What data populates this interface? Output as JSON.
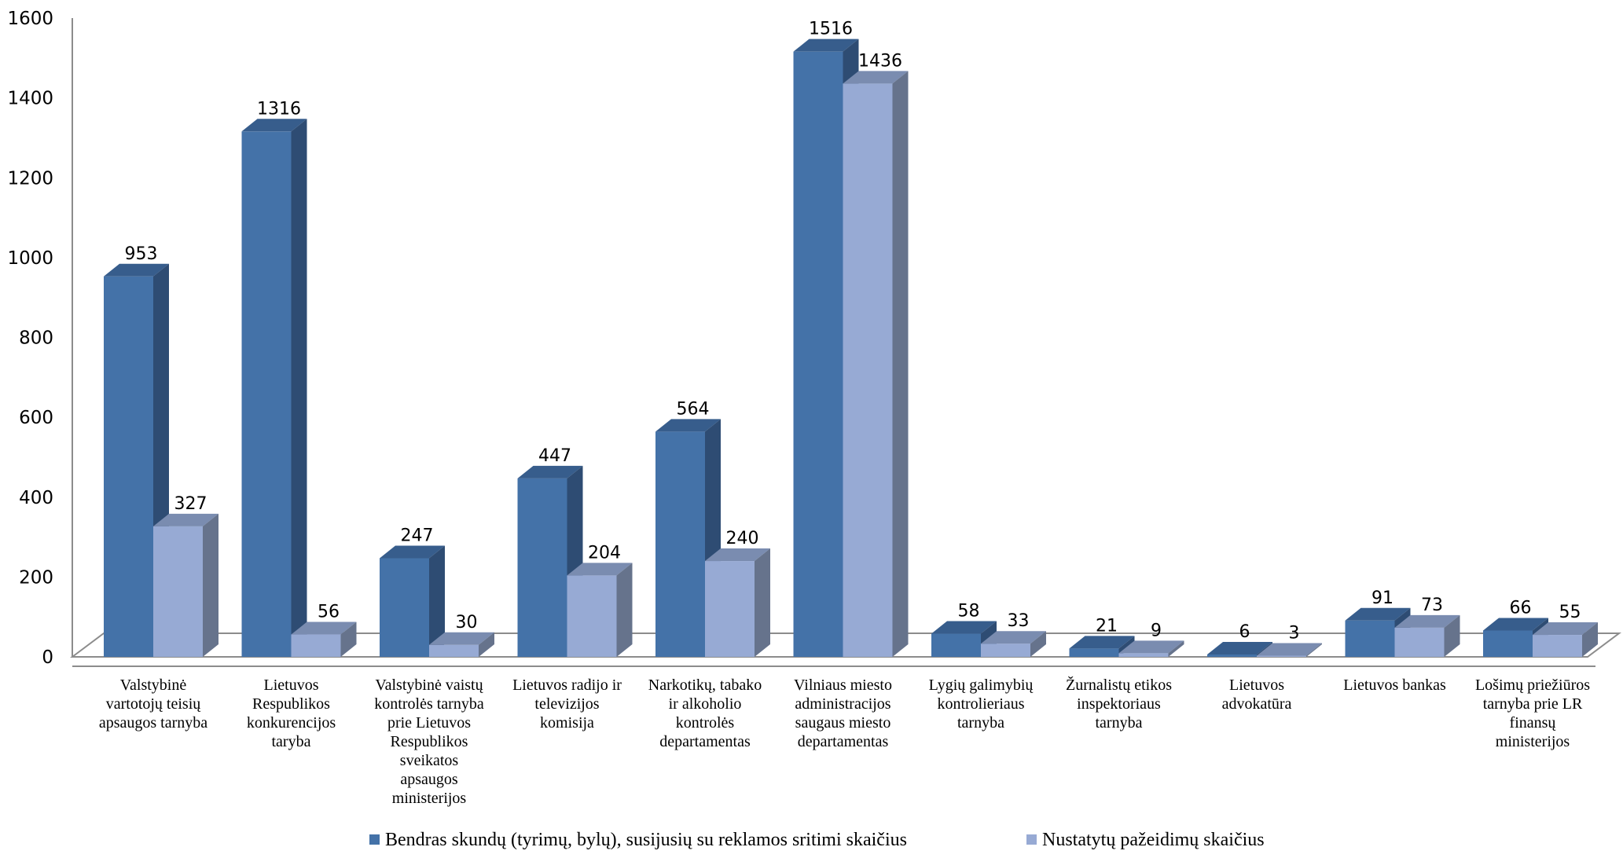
{
  "chart_data": {
    "type": "bar",
    "style": "3d-clustered-column",
    "ylim": [
      0,
      1600
    ],
    "ytick_labels": [
      "0",
      "200",
      "400",
      "600",
      "800",
      "1000",
      "1200",
      "1400",
      "1600"
    ],
    "ytick_values": [
      0,
      200,
      400,
      600,
      800,
      1000,
      1200,
      1400,
      1600
    ],
    "grid": false,
    "legend_position": "bottom",
    "categories": [
      [
        "Valstybinė",
        "vartotojų teisių",
        "apsaugos tarnyba"
      ],
      [
        "Lietuvos",
        "Respublikos",
        "konkurencijos",
        "taryba"
      ],
      [
        "Valstybinė vaistų",
        "kontrolės tarnyba",
        "prie Lietuvos",
        "Respublikos",
        "sveikatos",
        "apsaugos",
        "ministerijos"
      ],
      [
        "Lietuvos radijo ir",
        "televizijos",
        "komisija"
      ],
      [
        "Narkotikų, tabako",
        "ir alkoholio",
        "kontrolės",
        "departamentas"
      ],
      [
        "Vilniaus miesto",
        "administracijos",
        "saugaus miesto",
        "departamentas"
      ],
      [
        "Lygių galimybių",
        "kontrolieriaus",
        "tarnyba"
      ],
      [
        "Žurnalistų etikos",
        "inspektoriaus",
        "tarnyba"
      ],
      [
        "Lietuvos",
        "advokatūra"
      ],
      [
        "Lietuvos bankas"
      ],
      [
        "Lošimų priežiūros",
        "tarnyba prie LR",
        "finansų",
        "ministerijos"
      ]
    ],
    "series": [
      {
        "name": "Bendras skundų (tyrimų, bylų), susijusių su reklamos sritimi skaičius",
        "values": [
          953,
          1316,
          247,
          447,
          564,
          1516,
          58,
          21,
          6,
          91,
          66
        ],
        "color": "#4472A8",
        "top_color": "#375D8C",
        "side_color": "#2E4C73"
      },
      {
        "name": "Nustatytų pažeidimų skaičius",
        "values": [
          327,
          56,
          30,
          204,
          240,
          1436,
          33,
          9,
          3,
          73,
          55
        ],
        "color": "#97AAD4",
        "top_color": "#7A8CB0",
        "side_color": "#66738C"
      }
    ]
  }
}
